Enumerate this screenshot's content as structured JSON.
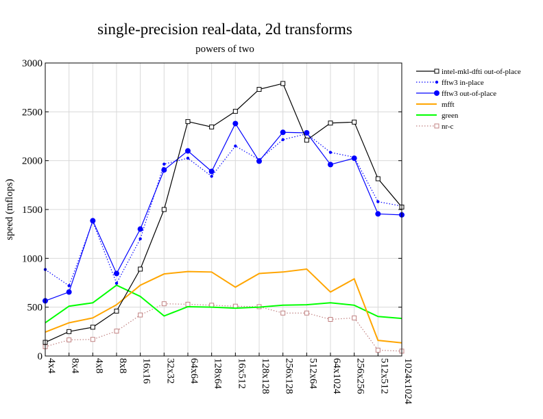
{
  "chart_data": {
    "type": "line",
    "title": "single-precision real-data, 2d transforms",
    "subtitle": "powers of two",
    "xlabel": "",
    "ylabel": "speed (mflops)",
    "ylim": [
      0,
      3000
    ],
    "yticks": [
      0,
      500,
      1000,
      1500,
      2000,
      2500,
      3000
    ],
    "grid": true,
    "legend_position": "right",
    "categories": [
      "4x4",
      "8x4",
      "4x8",
      "8x8",
      "16x16",
      "32x32",
      "64x64",
      "128x64",
      "16x512",
      "128x128",
      "256x128",
      "512x64",
      "64x1024",
      "256x256",
      "512x512",
      "1024x1024"
    ],
    "series": [
      {
        "name": "intel-mkl-dfti out-of-place",
        "color": "#000000",
        "marker": "square-open",
        "line": "solid",
        "values": [
          140,
          250,
          295,
          460,
          890,
          1500,
          2400,
          2345,
          2505,
          2730,
          2790,
          2210,
          2385,
          2395,
          1815,
          1525
        ]
      },
      {
        "name": "fftw3 in-place",
        "color": "#0000ff",
        "marker": "dot-small",
        "line": "dotted",
        "values": [
          885,
          720,
          1375,
          745,
          1200,
          1965,
          2025,
          1840,
          2150,
          2010,
          2215,
          2275,
          2085,
          2035,
          1580,
          1535
        ]
      },
      {
        "name": "fftw3 out-of-place",
        "color": "#0000ff",
        "marker": "dot-large",
        "line": "solid",
        "values": [
          565,
          655,
          1385,
          845,
          1300,
          1905,
          2100,
          1890,
          2380,
          1995,
          2290,
          2285,
          1960,
          2025,
          1455,
          1445
        ]
      },
      {
        "name": "mfft",
        "color": "#ffa500",
        "marker": "none",
        "line": "solid",
        "values": [
          245,
          340,
          390,
          525,
          725,
          840,
          865,
          860,
          705,
          845,
          860,
          890,
          655,
          790,
          160,
          135
        ]
      },
      {
        "name": "green",
        "color": "#00ff00",
        "marker": "none",
        "line": "solid",
        "values": [
          340,
          510,
          545,
          725,
          610,
          410,
          505,
          500,
          490,
          500,
          520,
          525,
          545,
          520,
          405,
          385
        ]
      },
      {
        "name": "nr-c",
        "color": "#c08080",
        "marker": "square-open",
        "line": "dotted",
        "values": [
          95,
          165,
          170,
          255,
          420,
          535,
          530,
          520,
          510,
          505,
          440,
          440,
          375,
          390,
          60,
          50
        ]
      }
    ]
  }
}
